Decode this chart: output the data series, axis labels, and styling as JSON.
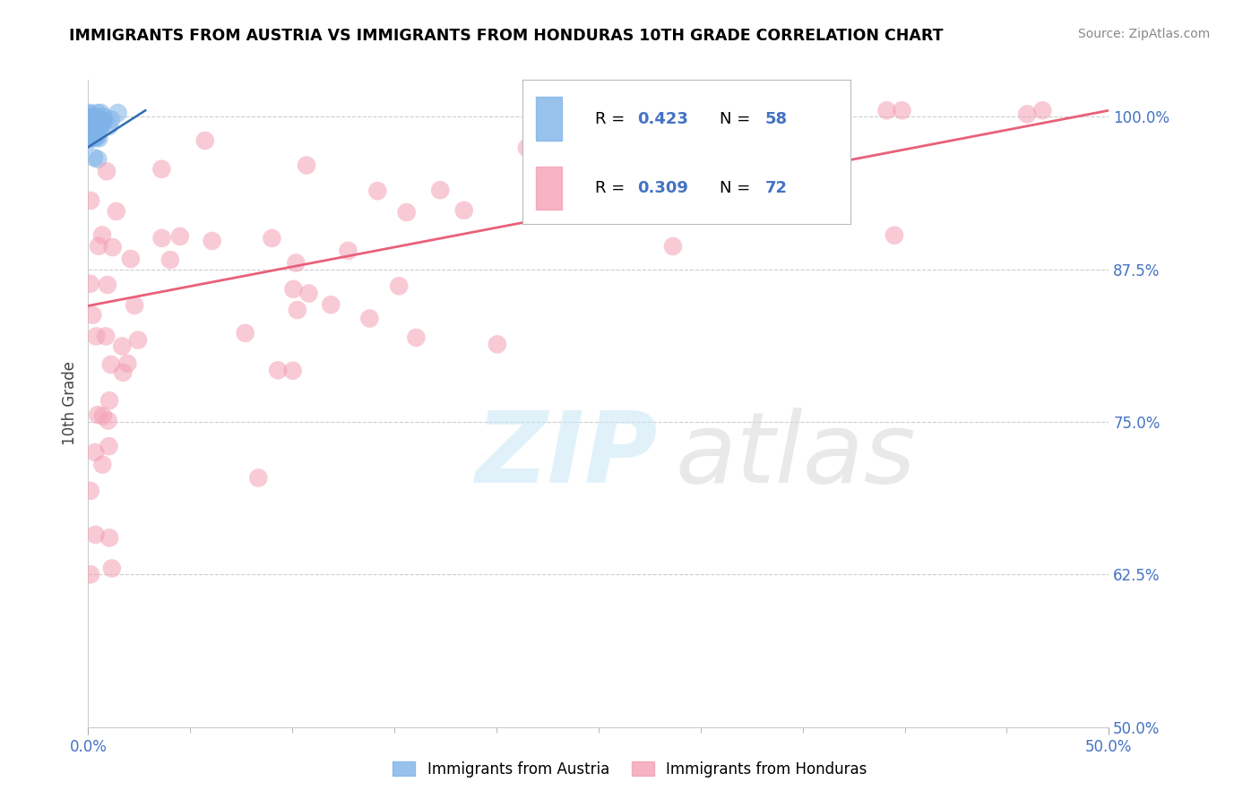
{
  "title": "IMMIGRANTS FROM AUSTRIA VS IMMIGRANTS FROM HONDURAS 10TH GRADE CORRELATION CHART",
  "source": "Source: ZipAtlas.com",
  "ylabel": "10th Grade",
  "y_ticks": [
    50.0,
    62.5,
    75.0,
    87.5,
    100.0
  ],
  "x_min": 0.0,
  "x_max": 50.0,
  "y_min": 50.0,
  "y_max": 103.0,
  "austria_color": "#7fb3e8",
  "honduras_color": "#f4a0b5",
  "austria_line_color": "#2f6db5",
  "honduras_line_color": "#e8607a",
  "austria_R": 0.423,
  "austria_N": 58,
  "honduras_R": 0.309,
  "honduras_N": 72,
  "legend_label_austria": "Immigrants from Austria",
  "legend_label_honduras": "Immigrants from Honduras",
  "austria_line_x0": 0.0,
  "austria_line_y0": 97.5,
  "austria_line_x1": 2.8,
  "austria_line_y1": 100.5,
  "honduras_line_x0": 0.0,
  "honduras_line_y0": 84.5,
  "honduras_line_x1": 50.0,
  "honduras_line_y1": 100.5
}
